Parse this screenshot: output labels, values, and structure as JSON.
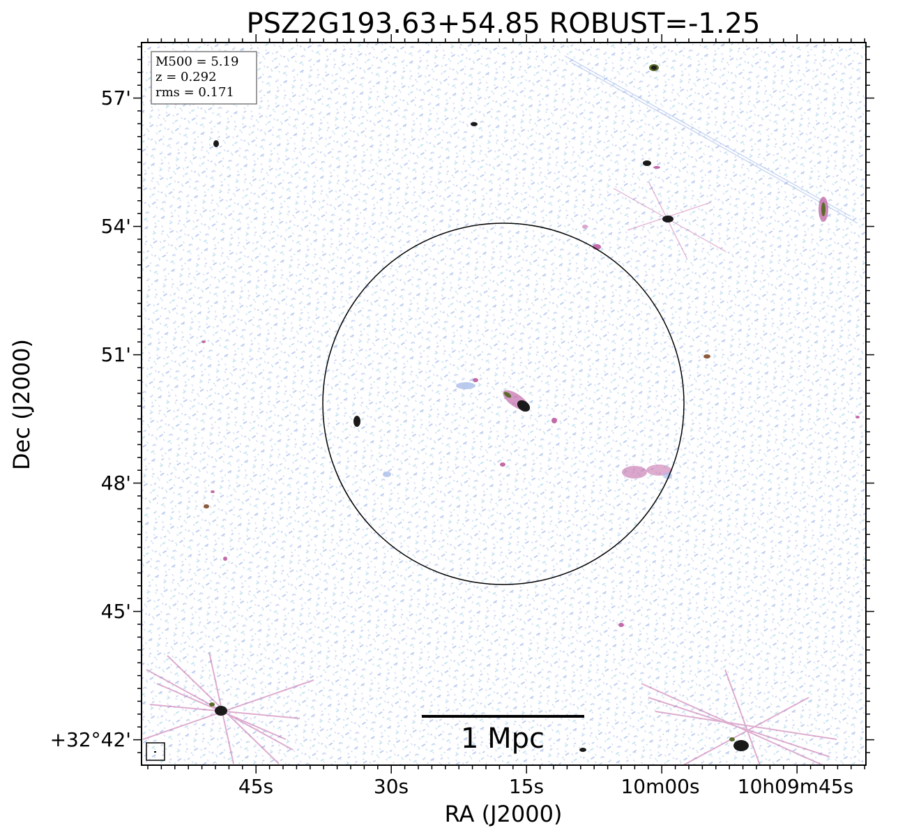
{
  "title": "PSZ2G193.63+54.85 ROBUST=-1.25",
  "axes": {
    "xlabel": "RA (J2000)",
    "ylabel": "Dec (J2000)",
    "x_ticks": [
      "45s",
      "30s",
      "15s",
      "10m00s",
      "10h09m45s"
    ],
    "y_ticks": [
      "57'",
      "54'",
      "51'",
      "48'",
      "45'",
      "+32°42'"
    ]
  },
  "info_box": {
    "m500": "M500 = 5.19",
    "z": "z = 0.292",
    "rms": "rms = 0.171"
  },
  "scale_bar": {
    "label": "1 Mpc"
  },
  "colors": {
    "noise_blue": "#a9bde9",
    "noise_cyan": "#9fd4e6",
    "emission_magenta": "#c26aa8",
    "emission_dark": "#1a1a1a",
    "frame": "#000000"
  }
}
